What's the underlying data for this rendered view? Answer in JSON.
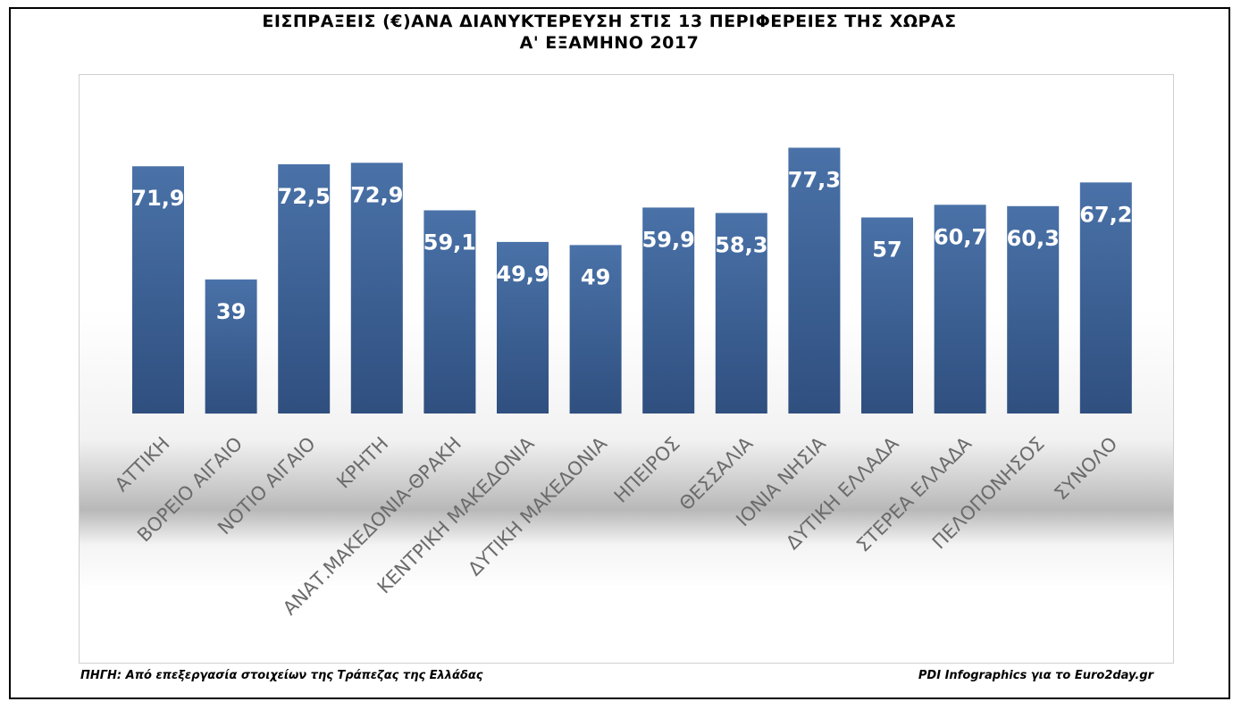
{
  "header": {
    "title_line1": "ΕΙΣΠΡΑΞΕΙΣ (€)ΑΝΑ ΔΙΑΝΥΚΤΕΡΕΥΣΗ ΣΤΙΣ 13 ΠΕΡΙΦΕΡΕΙΕΣ ΤΗΣ ΧΩΡΑΣ",
    "title_line2": "Α' ΕΞΑΜΗΝΟ 2017"
  },
  "footer": {
    "source": "ΠΗΓΗ: Από επεξεργασία στοιχείων της Τράπεζας της Ελλάδας",
    "credit": "PDI Infographics για το Euro2day.gr"
  },
  "colors": {
    "bar_top": "#4a72a8",
    "bar_bottom": "#2f4f7f",
    "label": "#ffffff",
    "category": "#6b6b6b"
  },
  "chart_data": {
    "type": "bar",
    "title": "ΕΙΣΠΡΑΞΕΙΣ (€)ΑΝΑ ΔΙΑΝΥΚΤΕΡΕΥΣΗ ΣΤΙΣ 13 ΠΕΡΙΦΕΡΕΙΕΣ ΤΗΣ ΧΩΡΑΣ",
    "subtitle": "Α' ΕΞΑΜΗΝΟ 2017",
    "xlabel": "",
    "ylabel": "",
    "ylim": [
      0,
      85
    ],
    "grid": false,
    "categories": [
      "ΑΤΤΙΚΗ",
      "ΒΟΡΕΙΟ ΑΙΓΑΙΟ",
      "ΝΟΤΙΟ ΑΙΓΑΙΟ",
      "ΚΡΗΤΗ",
      "ΑΝΑΤ.ΜΑΚΕΔΟΝΙΑ-ΘΡΑΚΗ",
      "ΚΕΝΤΡΙΚΗ ΜΑΚΕΔΟΝΙΑ",
      "ΔΥΤΙΚΗ ΜΑΚΕΔΟΝΙΑ",
      "ΗΠΕΙΡΟΣ",
      "ΘΕΣΣΑΛΙΑ",
      "ΙΟΝΙΑ ΝΗΣΙΑ",
      "ΔΥΤΙΚΗ ΕΛΛΑΔΑ",
      "ΣΤΕΡΕΑ ΕΛΛΑΔΑ",
      "ΠΕΛΟΠΟΝΗΣΟΣ",
      "ΣΥΝΟΛΟ"
    ],
    "values": [
      71.9,
      39,
      72.5,
      72.9,
      59.1,
      49.9,
      49,
      59.9,
      58.3,
      77.3,
      57,
      60.7,
      60.3,
      67.2
    ],
    "value_labels": [
      "71,9",
      "39",
      "72,5",
      "72,9",
      "59,1",
      "49,9",
      "49",
      "59,9",
      "58,3",
      "77,3",
      "57",
      "60,7",
      "60,3",
      "67,2"
    ]
  }
}
